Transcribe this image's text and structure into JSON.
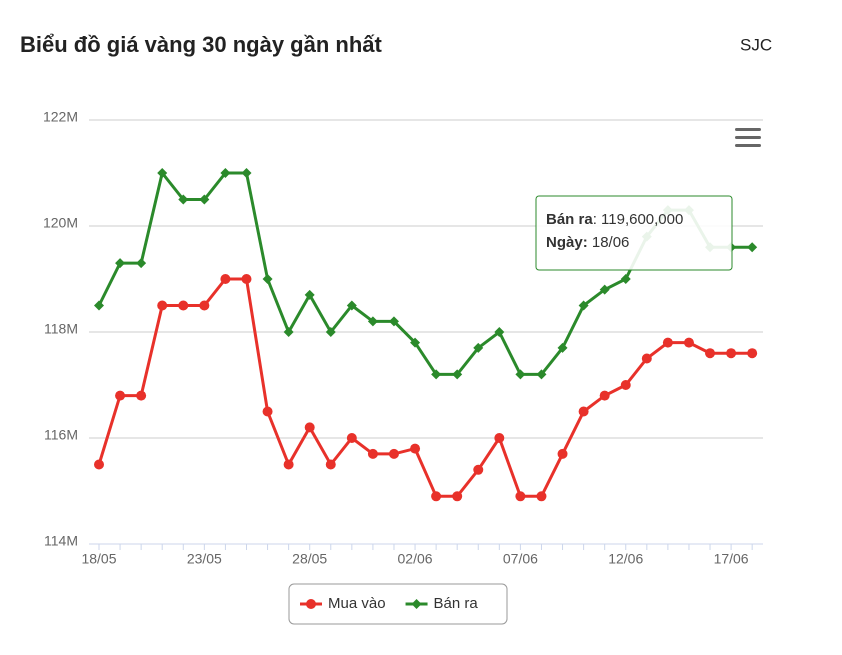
{
  "header": {
    "title": "Biểu đồ giá vàng 30 ngày gần nhất",
    "source": "SJC"
  },
  "chart_data": {
    "type": "line",
    "categories": [
      "18/05",
      null,
      null,
      null,
      null,
      "23/05",
      null,
      null,
      null,
      null,
      "28/05",
      null,
      null,
      null,
      null,
      "02/06",
      null,
      null,
      null,
      null,
      "07/06",
      null,
      null,
      null,
      null,
      "12/06",
      null,
      null,
      null,
      null,
      "17/06",
      "18/06"
    ],
    "series": [
      {
        "name": "Mua vào",
        "color": "#e8312a",
        "marker": "circle",
        "values": [
          115.5,
          116.8,
          116.8,
          118.5,
          118.5,
          118.5,
          119.0,
          119.0,
          116.5,
          115.5,
          116.2,
          115.5,
          116.0,
          115.7,
          115.7,
          115.8,
          114.9,
          114.9,
          115.4,
          116.0,
          114.9,
          114.9,
          115.7,
          116.5,
          116.8,
          117.0,
          117.5,
          117.8,
          117.8,
          117.6,
          117.6,
          117.6
        ]
      },
      {
        "name": "Bán ra",
        "color": "#2b8a2b",
        "marker": "diamond",
        "values": [
          118.5,
          119.3,
          119.3,
          121.0,
          120.5,
          120.5,
          121.0,
          121.0,
          119.0,
          118.0,
          118.7,
          118.0,
          118.5,
          118.2,
          118.2,
          117.8,
          117.2,
          117.2,
          117.7,
          118.0,
          117.2,
          117.2,
          117.7,
          118.5,
          118.8,
          119.0,
          119.8,
          120.3,
          120.3,
          119.6,
          119.6,
          119.6
        ]
      }
    ],
    "ylim": [
      114,
      122
    ],
    "yticks": [
      {
        "value": 114,
        "label": "114M"
      },
      {
        "value": 116,
        "label": "116M"
      },
      {
        "value": 118,
        "label": "118M"
      },
      {
        "value": 120,
        "label": "120M"
      },
      {
        "value": 122,
        "label": "122M"
      }
    ],
    "grid": true,
    "legend": "bottom",
    "tooltip": {
      "value_label": "119,600,000",
      "date_label": "Ngày"
    }
  }
}
